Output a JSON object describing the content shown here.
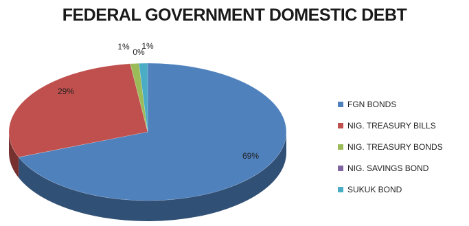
{
  "chart_data": {
    "type": "pie",
    "title": "FEDERAL GOVERNMENT DOMESTIC DEBT",
    "categories": [
      "FGN BONDS",
      "NIG. TREASURY BILLS",
      "NIG. TREASURY BONDS",
      "NIG. SAVINGS BOND",
      "SUKUK BOND"
    ],
    "values": [
      69,
      29,
      1,
      0,
      1
    ],
    "data_labels": [
      "69%",
      "29%",
      "1%",
      "0%",
      "1%"
    ],
    "colors": [
      "#4f81bd",
      "#c0504d",
      "#9bbb59",
      "#8064a2",
      "#4bacc6"
    ],
    "legend_position": "right",
    "style": "3d-pie"
  }
}
